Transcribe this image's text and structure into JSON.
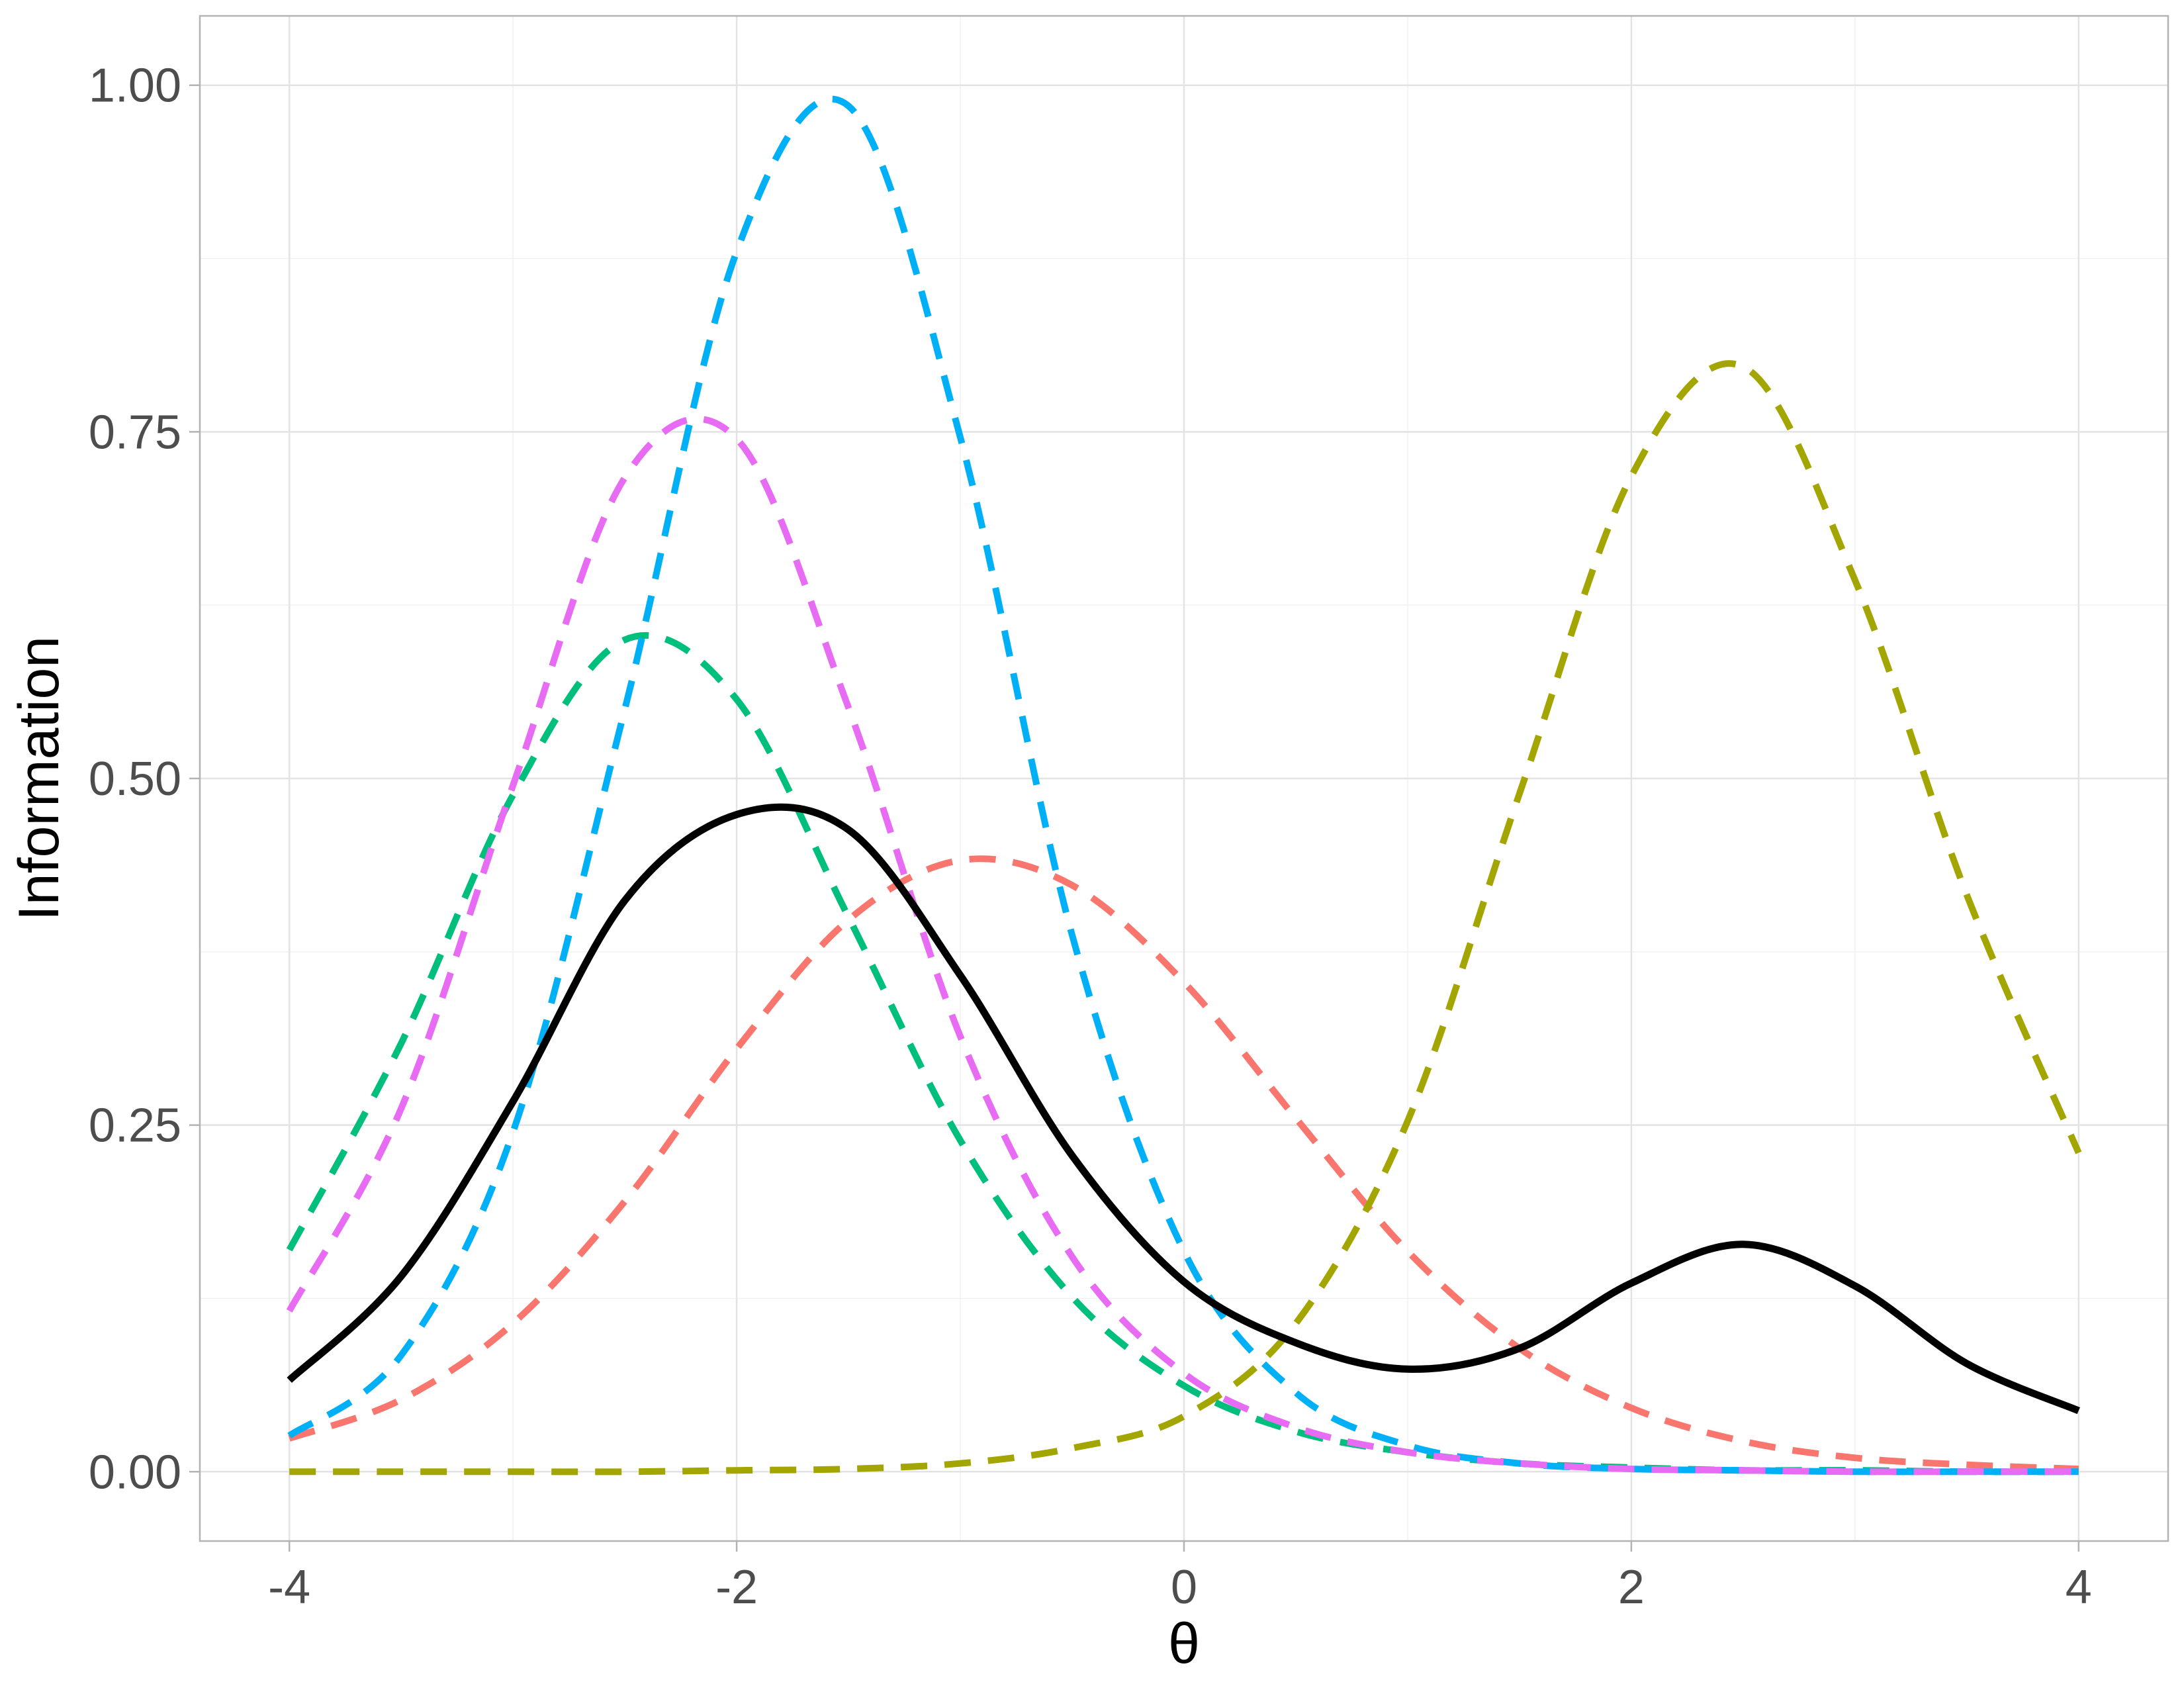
{
  "chart_data": {
    "type": "line",
    "title": "",
    "xlabel": "θ",
    "ylabel": "Information",
    "xlim": [
      -4.4,
      4.4
    ],
    "ylim": [
      -0.05,
      1.05
    ],
    "x_ticks": [
      -4,
      -2,
      0,
      2,
      4
    ],
    "x_tick_labels": [
      "-4",
      "-2",
      "0",
      "2",
      "4"
    ],
    "y_ticks": [
      0,
      0.25,
      0.5,
      0.75,
      1
    ],
    "y_tick_labels": [
      "0.00",
      "0.25",
      "0.50",
      "0.75",
      "1.00"
    ],
    "grid": true,
    "legend": "none",
    "x": [
      -4,
      -3.5,
      -3,
      -2.5,
      -2,
      -1.5,
      -1,
      -0.5,
      0,
      0.5,
      1,
      1.5,
      2,
      2.5,
      3,
      3.5,
      4
    ],
    "series": [
      {
        "color": "#F8766D",
        "style": "dashed",
        "values": [
          0.024,
          0.052,
          0.107,
          0.195,
          0.305,
          0.398,
          0.441,
          0.423,
          0.353,
          0.255,
          0.159,
          0.089,
          0.046,
          0.022,
          0.01,
          0.005,
          0.002
        ]
      },
      {
        "color": "#A3A500",
        "style": "dashed",
        "values": [
          0,
          0,
          0,
          0,
          0.001,
          0.002,
          0.006,
          0.017,
          0.04,
          0.107,
          0.253,
          0.489,
          0.718,
          0.797,
          0.643,
          0.416,
          0.23
        ]
      },
      {
        "color": "#00BF7D",
        "style": "dashed",
        "values": [
          0.16,
          0.309,
          0.488,
          0.6,
          0.557,
          0.4,
          0.239,
          0.126,
          0.062,
          0.029,
          0.014,
          0.006,
          0.003,
          0.001,
          0.001,
          0,
          0
        ]
      },
      {
        "color": "#00B0F6",
        "style": "dashed",
        "values": [
          0.026,
          0.084,
          0.245,
          0.55,
          0.88,
          0.985,
          0.746,
          0.387,
          0.159,
          0.057,
          0.019,
          0.006,
          0.002,
          0.001,
          0,
          0,
          0
        ]
      },
      {
        "color": "#E76BF3",
        "style": "dashed",
        "values": [
          0.116,
          0.262,
          0.495,
          0.717,
          0.745,
          0.551,
          0.314,
          0.155,
          0.071,
          0.032,
          0.014,
          0.006,
          0.002,
          0.001,
          0,
          0,
          0
        ]
      },
      {
        "color": "#000000",
        "style": "solid",
        "values": [
          0.066,
          0.141,
          0.267,
          0.412,
          0.474,
          0.463,
          0.358,
          0.228,
          0.137,
          0.093,
          0.074,
          0.089,
          0.136,
          0.164,
          0.134,
          0.078,
          0.044
        ]
      }
    ]
  }
}
